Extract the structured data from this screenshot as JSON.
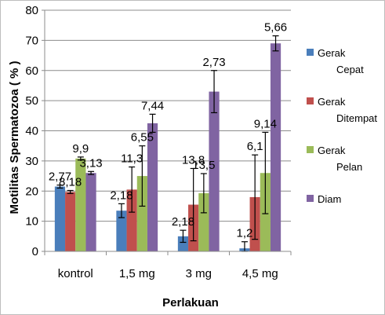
{
  "chart_data": {
    "type": "bar",
    "title": "",
    "xlabel": "Perlakuan",
    "ylabel": "Motilitas Spermatozoa ( % )",
    "ylim": [
      0,
      80
    ],
    "yticks": [
      0,
      10,
      20,
      30,
      40,
      50,
      60,
      70,
      80
    ],
    "categories": [
      "kontrol",
      "1,5 mg",
      "3 mg",
      "4,5 mg"
    ],
    "grid": true,
    "legend_position": "right",
    "series": [
      {
        "name": "Gerak Cepat",
        "color": "#4a7ebb",
        "values": [
          21.5,
          13.5,
          5.0,
          1.0
        ],
        "errors": [
          0.5,
          2.3,
          2.0,
          2.2
        ],
        "labels": [
          "2,77",
          "2,18",
          "2,18",
          "1,2"
        ]
      },
      {
        "name": "Gerak Ditempat",
        "color": "#c0504d",
        "values": [
          19.7,
          20.5,
          15.5,
          18.0
        ],
        "errors": [
          0.5,
          7.5,
          12.0,
          14.0
        ],
        "labels": [
          "8,18",
          "11,3",
          "13,8",
          "6,1"
        ]
      },
      {
        "name": "Gerak Pelan",
        "color": "#9bbb59",
        "values": [
          30.8,
          25.0,
          19.3,
          26.0
        ],
        "errors": [
          0.5,
          10.0,
          6.5,
          13.5
        ],
        "labels": [
          "9,9",
          "6,55",
          "13,5",
          "9,14"
        ]
      },
      {
        "name": "Diam",
        "color": "#8064a2",
        "values": [
          26.0,
          42.5,
          53.0,
          69.0
        ],
        "errors": [
          0.5,
          3.0,
          7.0,
          2.5
        ],
        "labels": [
          "3,13",
          "7,44",
          "2,73",
          "5,66"
        ]
      }
    ]
  }
}
